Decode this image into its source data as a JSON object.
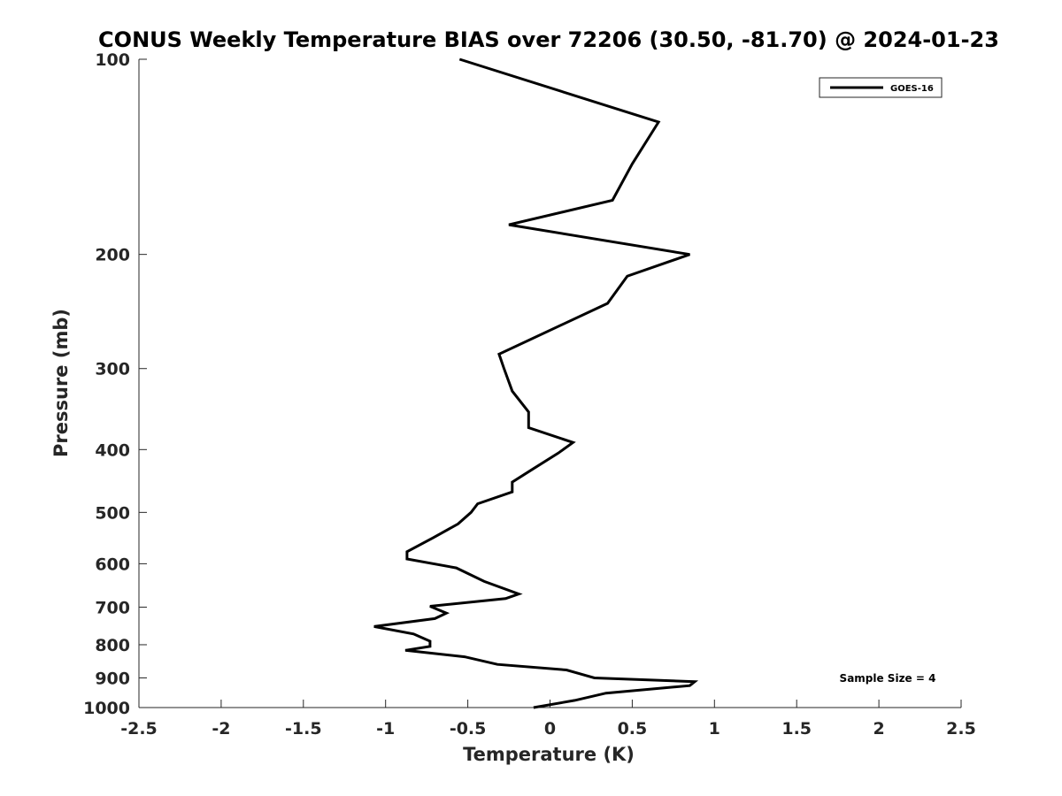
{
  "chart_data": {
    "type": "line",
    "title": "CONUS Weekly Temperature BIAS over 72206 (30.50, -81.70) @ 2024-01-23",
    "xlabel": "Temperature (K)",
    "ylabel": "Pressure (mb)",
    "xlim": [
      -2.5,
      2.5
    ],
    "ylim": [
      100,
      1000
    ],
    "y_scale": "log",
    "y_reversed": true,
    "grid": false,
    "legend_position": "top-right",
    "x_ticks": [
      "-2.5",
      "-2",
      "-1.5",
      "-1",
      "-0.5",
      "0",
      "0.5",
      "1",
      "1.5",
      "2",
      "2.5"
    ],
    "y_ticks": [
      "100",
      "200",
      "300",
      "400",
      "500",
      "600",
      "700",
      "800",
      "900",
      "1000"
    ],
    "series": [
      {
        "name": "GOES-16",
        "color": "#000000",
        "points": [
          {
            "x": -0.55,
            "y": 100
          },
          {
            "x": 0.66,
            "y": 125
          },
          {
            "x": 0.5,
            "y": 145
          },
          {
            "x": 0.38,
            "y": 165
          },
          {
            "x": -0.25,
            "y": 180
          },
          {
            "x": 0.85,
            "y": 200
          },
          {
            "x": 0.47,
            "y": 216
          },
          {
            "x": 0.35,
            "y": 238
          },
          {
            "x": -0.31,
            "y": 285
          },
          {
            "x": -0.28,
            "y": 300
          },
          {
            "x": -0.23,
            "y": 325
          },
          {
            "x": -0.13,
            "y": 350
          },
          {
            "x": -0.13,
            "y": 370
          },
          {
            "x": 0.14,
            "y": 390
          },
          {
            "x": 0.05,
            "y": 405
          },
          {
            "x": -0.1,
            "y": 428
          },
          {
            "x": -0.23,
            "y": 449
          },
          {
            "x": -0.23,
            "y": 465
          },
          {
            "x": -0.44,
            "y": 485
          },
          {
            "x": -0.48,
            "y": 500
          },
          {
            "x": -0.56,
            "y": 521
          },
          {
            "x": -0.71,
            "y": 547
          },
          {
            "x": -0.87,
            "y": 575
          },
          {
            "x": -0.87,
            "y": 590
          },
          {
            "x": -0.57,
            "y": 609
          },
          {
            "x": -0.4,
            "y": 639
          },
          {
            "x": -0.19,
            "y": 668
          },
          {
            "x": -0.27,
            "y": 679
          },
          {
            "x": -0.73,
            "y": 698
          },
          {
            "x": -0.63,
            "y": 715
          },
          {
            "x": -0.7,
            "y": 729
          },
          {
            "x": -1.07,
            "y": 750
          },
          {
            "x": -0.83,
            "y": 770
          },
          {
            "x": -0.73,
            "y": 790
          },
          {
            "x": -0.73,
            "y": 805
          },
          {
            "x": -0.88,
            "y": 816
          },
          {
            "x": -0.52,
            "y": 835
          },
          {
            "x": -0.32,
            "y": 858
          },
          {
            "x": 0.1,
            "y": 875
          },
          {
            "x": 0.27,
            "y": 900
          },
          {
            "x": 0.88,
            "y": 912
          },
          {
            "x": 0.85,
            "y": 925
          },
          {
            "x": 0.34,
            "y": 950
          },
          {
            "x": 0.15,
            "y": 975
          },
          {
            "x": -0.1,
            "y": 1000
          }
        ]
      }
    ],
    "annotations": [
      "Sample Size = 4"
    ]
  }
}
